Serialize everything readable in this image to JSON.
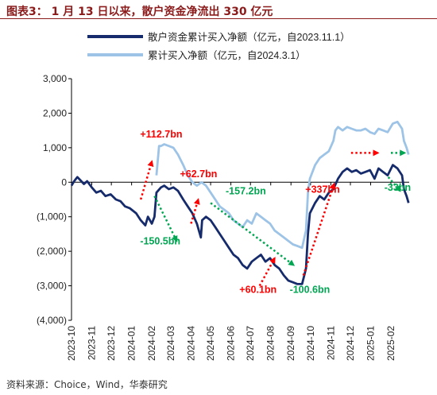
{
  "figure_title": "图表3：  1 月 13 日以来，散户资金净流出 330 亿元",
  "source_note": "资料来源：Choice，Wind，华泰研究",
  "colors": {
    "title": "#8b1a1a",
    "series1": "#162b6b",
    "series2": "#9dc3e6",
    "up_arrow": "#ff0000",
    "down_arrow": "#00a651",
    "up_text": "#ff0000",
    "down_text": "#00a651"
  },
  "chart_data": {
    "type": "line",
    "x_ticks": [
      "2023-10",
      "2023-11",
      "2023-12",
      "2024-01",
      "2024-02",
      "2024-03",
      "2024-04",
      "2024-05",
      "2024-06",
      "2024-07",
      "2024-08",
      "2024-09",
      "2024-10",
      "2024-11",
      "2024-12",
      "2025-01",
      "2025-02"
    ],
    "y_ticks": [
      "3,000",
      "2,000",
      "1,000",
      "0",
      "(1,000)",
      "(2,000)",
      "(3,000)",
      "(4,000)"
    ],
    "ylim": [
      -4000,
      3000
    ],
    "xlim": [
      "2023-10-01",
      "2025-03-01"
    ],
    "legend_position": "top-left",
    "grid": false,
    "series": [
      {
        "name": "散户资金累计买入净额（亿元，自2023.11.1）",
        "points": [
          [
            "2023-10-01",
            -100
          ],
          [
            "2023-10-05",
            30
          ],
          [
            "2023-10-10",
            150
          ],
          [
            "2023-10-15",
            50
          ],
          [
            "2023-10-20",
            -50
          ],
          [
            "2023-10-25",
            30
          ],
          [
            "2023-11-01",
            -150
          ],
          [
            "2023-11-08",
            -300
          ],
          [
            "2023-11-15",
            -250
          ],
          [
            "2023-11-22",
            -400
          ],
          [
            "2023-11-30",
            -350
          ],
          [
            "2023-12-08",
            -500
          ],
          [
            "2023-12-15",
            -550
          ],
          [
            "2023-12-22",
            -700
          ],
          [
            "2023-12-29",
            -750
          ],
          [
            "2024-01-08",
            -900
          ],
          [
            "2024-01-15",
            -1100
          ],
          [
            "2024-01-22",
            -1250
          ],
          [
            "2024-01-26",
            -1000
          ],
          [
            "2024-02-01",
            -1200
          ],
          [
            "2024-02-05",
            -1000
          ],
          [
            "2024-02-08",
            -300
          ],
          [
            "2024-02-15",
            -150
          ],
          [
            "2024-02-20",
            -100
          ],
          [
            "2024-02-27",
            -200
          ],
          [
            "2024-03-05",
            -150
          ],
          [
            "2024-03-12",
            -250
          ],
          [
            "2024-03-20",
            -500
          ],
          [
            "2024-03-27",
            -700
          ],
          [
            "2024-04-03",
            -900
          ],
          [
            "2024-04-10",
            -1200
          ],
          [
            "2024-04-16",
            -1600
          ],
          [
            "2024-04-18",
            -1100
          ],
          [
            "2024-04-24",
            -1000
          ],
          [
            "2024-05-01",
            -1100
          ],
          [
            "2024-05-08",
            -1300
          ],
          [
            "2024-05-15",
            -1500
          ],
          [
            "2024-05-22",
            -1700
          ],
          [
            "2024-05-29",
            -1900
          ],
          [
            "2024-06-05",
            -2100
          ],
          [
            "2024-06-12",
            -2200
          ],
          [
            "2024-06-19",
            -2400
          ],
          [
            "2024-06-26",
            -2500
          ],
          [
            "2024-07-03",
            -2300
          ],
          [
            "2024-07-10",
            -2200
          ],
          [
            "2024-07-17",
            -2100
          ],
          [
            "2024-07-24",
            -2300
          ],
          [
            "2024-07-31",
            -2200
          ],
          [
            "2024-08-07",
            -2400
          ],
          [
            "2024-08-14",
            -2500
          ],
          [
            "2024-08-21",
            -2700
          ],
          [
            "2024-08-28",
            -2850
          ],
          [
            "2024-09-04",
            -2900
          ],
          [
            "2024-09-11",
            -2950
          ],
          [
            "2024-09-18",
            -2950
          ],
          [
            "2024-09-24",
            -2500
          ],
          [
            "2024-09-27",
            -1500
          ],
          [
            "2024-09-30",
            -900
          ],
          [
            "2024-10-08",
            -600
          ],
          [
            "2024-10-15",
            -400
          ],
          [
            "2024-10-22",
            -500
          ],
          [
            "2024-10-29",
            -300
          ],
          [
            "2024-11-05",
            -200
          ],
          [
            "2024-11-12",
            100
          ],
          [
            "2024-11-19",
            300
          ],
          [
            "2024-11-26",
            400
          ],
          [
            "2024-12-03",
            300
          ],
          [
            "2024-12-10",
            350
          ],
          [
            "2024-12-17",
            250
          ],
          [
            "2024-12-24",
            300
          ],
          [
            "2024-12-31",
            350
          ],
          [
            "2025-01-07",
            100
          ],
          [
            "2025-01-13",
            400
          ],
          [
            "2025-01-20",
            300
          ],
          [
            "2025-01-27",
            200
          ],
          [
            "2025-02-04",
            500
          ],
          [
            "2025-02-11",
            400
          ],
          [
            "2025-02-18",
            200
          ],
          [
            "2025-02-21",
            -200
          ],
          [
            "2025-02-25",
            -400
          ],
          [
            "2025-02-28",
            -600
          ]
        ]
      },
      {
        "name": "累计买入净额（亿元，自2024.3.1）",
        "points": [
          [
            "2024-02-08",
            200
          ],
          [
            "2024-02-12",
            1050
          ],
          [
            "2024-02-15",
            1050
          ],
          [
            "2024-02-20",
            1100
          ],
          [
            "2024-02-27",
            1050
          ],
          [
            "2024-03-05",
            1000
          ],
          [
            "2024-03-12",
            800
          ],
          [
            "2024-03-20",
            500
          ],
          [
            "2024-03-27",
            200
          ],
          [
            "2024-04-03",
            0
          ],
          [
            "2024-04-10",
            -100
          ],
          [
            "2024-04-17",
            0
          ],
          [
            "2024-04-24",
            -100
          ],
          [
            "2024-05-01",
            -300
          ],
          [
            "2024-05-08",
            -500
          ],
          [
            "2024-05-15",
            -700
          ],
          [
            "2024-05-22",
            -800
          ],
          [
            "2024-05-29",
            -900
          ],
          [
            "2024-06-05",
            -1100
          ],
          [
            "2024-06-12",
            -1200
          ],
          [
            "2024-06-19",
            -1300
          ],
          [
            "2024-06-26",
            -1100
          ],
          [
            "2024-07-03",
            -1200
          ],
          [
            "2024-07-10",
            -900
          ],
          [
            "2024-07-17",
            -1000
          ],
          [
            "2024-07-24",
            -1100
          ],
          [
            "2024-07-31",
            -1200
          ],
          [
            "2024-08-07",
            -1400
          ],
          [
            "2024-08-14",
            -1500
          ],
          [
            "2024-08-21",
            -1600
          ],
          [
            "2024-08-28",
            -1700
          ],
          [
            "2024-09-04",
            -1800
          ],
          [
            "2024-09-11",
            -1850
          ],
          [
            "2024-09-18",
            -1900
          ],
          [
            "2024-09-24",
            -1400
          ],
          [
            "2024-09-27",
            -300
          ],
          [
            "2024-09-30",
            100
          ],
          [
            "2024-10-08",
            500
          ],
          [
            "2024-10-15",
            700
          ],
          [
            "2024-10-22",
            800
          ],
          [
            "2024-10-29",
            900
          ],
          [
            "2024-11-05",
            1200
          ],
          [
            "2024-11-08",
            1500
          ],
          [
            "2024-11-12",
            1600
          ],
          [
            "2024-11-19",
            1500
          ],
          [
            "2024-11-26",
            1600
          ],
          [
            "2024-12-03",
            1550
          ],
          [
            "2024-12-10",
            1500
          ],
          [
            "2024-12-17",
            1500
          ],
          [
            "2024-12-24",
            1550
          ],
          [
            "2024-12-31",
            1450
          ],
          [
            "2025-01-07",
            1400
          ],
          [
            "2025-01-13",
            1550
          ],
          [
            "2025-01-20",
            1500
          ],
          [
            "2025-01-27",
            1450
          ],
          [
            "2025-02-04",
            1700
          ],
          [
            "2025-02-11",
            1750
          ],
          [
            "2025-02-18",
            1550
          ],
          [
            "2025-02-21",
            1200
          ],
          [
            "2025-02-25",
            1000
          ],
          [
            "2025-02-28",
            800
          ]
        ]
      }
    ],
    "annotations": [
      {
        "label": "+112.7bn",
        "dir": "up",
        "from": [
          "2024-01-15",
          -500
        ],
        "to": [
          "2024-02-01",
          600
        ],
        "text_at": [
          "2024-01-14",
          1300
        ]
      },
      {
        "label": "-150.5bn",
        "dir": "down",
        "from": [
          "2024-02-05",
          -400
        ],
        "to": [
          "2024-03-10",
          -1700
        ],
        "text_at": [
          "2024-01-14",
          -1800
        ]
      },
      {
        "label": "+62.7bn",
        "dir": "up",
        "from": [
          "2024-04-01",
          -1200
        ],
        "to": [
          "2024-04-12",
          -500
        ],
        "text_at": [
          "2024-03-15",
          150
        ]
      },
      {
        "label": "-157.2bn",
        "dir": "down",
        "from": [
          "2024-05-01",
          -600
        ],
        "to": [
          "2024-09-05",
          -2400
        ],
        "text_at": [
          "2024-05-24",
          -350
        ]
      },
      {
        "label": "+60.1bn",
        "dir": "up",
        "from": [
          "2024-07-15",
          -3000
        ],
        "to": [
          "2024-08-07",
          -2200
        ],
        "text_at": [
          "2024-06-14",
          -3200
        ]
      },
      {
        "label": "+337bn",
        "dir": "up",
        "from": [
          "2024-09-20",
          -2700
        ],
        "to": [
          "2024-11-06",
          -50
        ],
        "text_at": [
          "2024-09-23",
          -300
        ]
      },
      {
        "label": "-100.6bn",
        "dir": "down",
        "from": [
          "2024-11-10",
          -50
        ],
        "text_at": [
          "2024-08-30",
          -3200
        ]
      },
      {
        "label": "-33bn",
        "dir": "down",
        "from": [
          "2025-01-28",
          150
        ],
        "to": [
          "2025-02-15",
          -250
        ],
        "text_at": [
          "2025-01-22",
          -250
        ]
      }
    ],
    "extra_arrows": [
      {
        "dir": "up",
        "from": [
          "2024-12-02",
          850
        ],
        "to": [
          "2025-01-12",
          850
        ]
      },
      {
        "dir": "down",
        "from": [
          "2025-02-01",
          850
        ],
        "to": [
          "2025-02-22",
          850
        ]
      }
    ]
  }
}
